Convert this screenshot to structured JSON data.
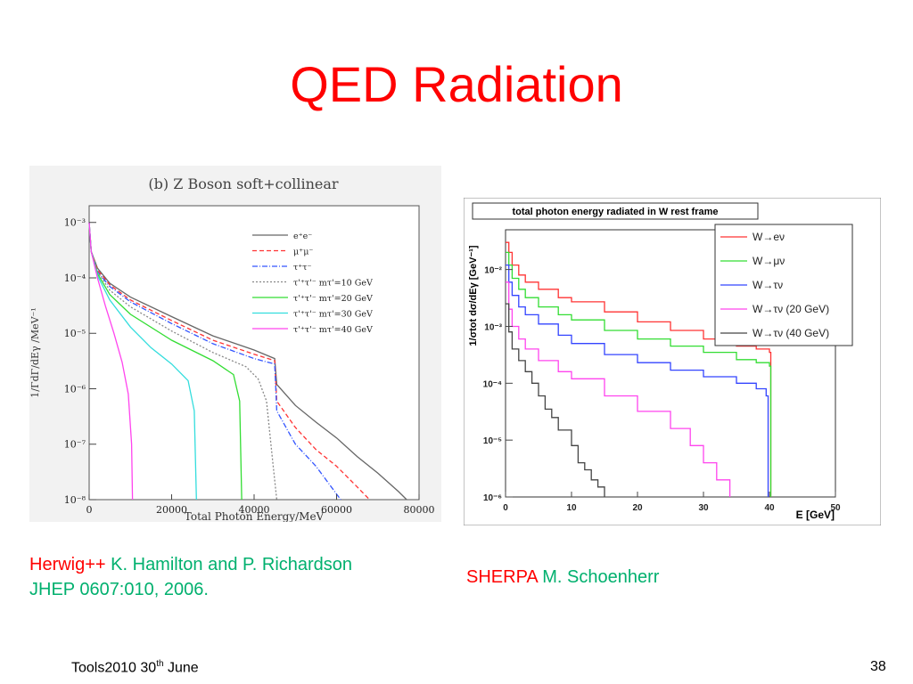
{
  "slide": {
    "title": "QED Radiation",
    "footer_left": "Tools2010 30",
    "footer_sup": "th",
    "footer_left_tail": " June",
    "page_number": "38"
  },
  "credits": {
    "left_tool": "Herwig++",
    "left_authors": " K. Hamilton and P. Richardson",
    "left_ref": "JHEP 0607:010, 2006.",
    "right_tool": "SHERPA",
    "right_author": " M. Schoenherr"
  },
  "colors": {
    "title": "#ff0000",
    "tool": "#ff0000",
    "authors": "#00b06e"
  },
  "chart_data": [
    {
      "type": "line",
      "title": "(b) Z Boson soft+collinear",
      "xlabel": "Total Photon Energy/MeV",
      "ylabel": "1/ΓdΓ/dEγ /MeV⁻¹",
      "xlim": [
        0,
        80000
      ],
      "ylim": [
        1e-08,
        0.002
      ],
      "yscale": "log",
      "x_ticks": [
        "0",
        "20000",
        "40000",
        "60000",
        "80000"
      ],
      "y_ticks": [
        "10⁻³",
        "10⁻⁴",
        "10⁻⁵",
        "10⁻⁶",
        "10⁻⁷",
        "10⁻⁸"
      ],
      "legend_position": "top-right",
      "series": [
        {
          "name": "e⁺e⁻",
          "color": "#666666",
          "dash": "",
          "x": [
            0,
            500,
            2000,
            5000,
            10000,
            20000,
            30000,
            40000,
            45000,
            45500,
            50000,
            55000,
            60000,
            65000,
            70000,
            75000,
            77000
          ],
          "y": [
            0.001,
            0.0003,
            0.00015,
            8e-05,
            4.5e-05,
            2e-05,
            9e-06,
            5e-06,
            3.5e-06,
            1.2e-06,
            5e-07,
            2.5e-07,
            1.3e-07,
            6e-08,
            3e-08,
            1.4e-08,
            1e-08
          ]
        },
        {
          "name": "μ⁺μ⁻",
          "color": "#ff3333",
          "dash": "5,3",
          "x": [
            0,
            500,
            2000,
            5000,
            10000,
            20000,
            30000,
            40000,
            45000,
            45500,
            50000,
            55000,
            60000,
            65000,
            68000
          ],
          "y": [
            0.001,
            0.0003,
            0.00014,
            7.5e-05,
            4e-05,
            1.7e-05,
            7.5e-06,
            4.2e-06,
            3.2e-06,
            6e-07,
            2e-07,
            8e-08,
            4e-08,
            1.7e-08,
            1e-08
          ]
        },
        {
          "name": "τ⁺τ⁻",
          "color": "#3355ff",
          "dash": "6,2,1,2",
          "x": [
            0,
            500,
            2000,
            5000,
            10000,
            20000,
            30000,
            40000,
            45000,
            45500,
            50000,
            55000,
            58000,
            61000
          ],
          "y": [
            0.001,
            0.0003,
            0.00013,
            7e-05,
            3.7e-05,
            1.5e-05,
            6.5e-06,
            3.5e-06,
            2.8e-06,
            4e-07,
            1e-07,
            4e-08,
            2e-08,
            1e-08
          ]
        },
        {
          "name": "τ'⁺τ'⁻ mτ'=10 GeV",
          "color": "#888888",
          "dash": "2,2",
          "x": [
            0,
            500,
            2000,
            5000,
            10000,
            20000,
            30000,
            38000,
            41000,
            43000,
            44500,
            45500
          ],
          "y": [
            0.001,
            0.0003,
            0.00013,
            6e-05,
            3e-05,
            1.1e-05,
            4.5e-06,
            2.5e-06,
            1.5e-06,
            6e-07,
            5e-08,
            1e-08
          ]
        },
        {
          "name": "τ'⁺τ'⁻ mτ'=20 GeV",
          "color": "#33dd33",
          "dash": "",
          "x": [
            0,
            500,
            2000,
            5000,
            10000,
            20000,
            30000,
            35000,
            36500,
            37000
          ],
          "y": [
            0.001,
            0.0003,
            0.00012,
            5e-05,
            2.2e-05,
            7.5e-06,
            3.2e-06,
            1.8e-06,
            6e-07,
            1e-08
          ]
        },
        {
          "name": "τ'⁺τ'⁻ mτ'=30 GeV",
          "color": "#33dddd",
          "dash": "",
          "x": [
            0,
            500,
            2000,
            5000,
            10000,
            15000,
            20000,
            24000,
            25500,
            26000
          ],
          "y": [
            0.001,
            0.0003,
            0.00011,
            4e-05,
            1.3e-05,
            5.5e-06,
            2.8e-06,
            1.4e-06,
            4e-07,
            1e-08
          ]
        },
        {
          "name": "τ'⁺τ'⁻ mτ'=40 GeV",
          "color": "#ff44ee",
          "dash": "",
          "x": [
            0,
            500,
            2000,
            4000,
            6000,
            8000,
            9500,
            10300,
            10500
          ],
          "y": [
            0.001,
            0.0003,
            0.0001,
            3e-05,
            1e-05,
            3e-06,
            8e-07,
            1e-07,
            1e-08
          ]
        }
      ]
    },
    {
      "type": "line",
      "title": "total photon energy radiated in W rest frame",
      "xlabel": "E [GeV]",
      "ylabel": "1/σtot dσ/dEγ [GeV⁻¹]",
      "xlim": [
        0,
        50
      ],
      "ylim": [
        1e-06,
        0.05
      ],
      "yscale": "log",
      "x_ticks": [
        "0",
        "10",
        "20",
        "30",
        "40",
        "50"
      ],
      "y_ticks": [
        "10⁻²",
        "10⁻³",
        "10⁻⁴",
        "10⁻⁵",
        "10⁻⁶"
      ],
      "legend_position": "top-right",
      "series": [
        {
          "name": "W→eν",
          "color": "#ff3333",
          "x": [
            0,
            0.5,
            1,
            2,
            3,
            5,
            8,
            10,
            15,
            20,
            25,
            30,
            35,
            38,
            40,
            40.2
          ],
          "y": [
            0.03,
            0.02,
            0.012,
            0.008,
            0.006,
            0.0045,
            0.0032,
            0.0027,
            0.0018,
            0.0012,
            0.00085,
            0.0006,
            0.00045,
            0.0004,
            0.00035,
            1e-06
          ]
        },
        {
          "name": "W→μν",
          "color": "#33dd33",
          "x": [
            0,
            0.5,
            1,
            2,
            3,
            5,
            8,
            10,
            15,
            20,
            25,
            30,
            35,
            38,
            40,
            40.2
          ],
          "y": [
            0.02,
            0.012,
            0.007,
            0.0045,
            0.0032,
            0.0022,
            0.0016,
            0.0013,
            0.00085,
            0.0006,
            0.00045,
            0.00035,
            0.00026,
            0.00023,
            0.0002,
            1e-06
          ]
        },
        {
          "name": "W→τν",
          "color": "#3344ff",
          "x": [
            0,
            0.5,
            1,
            2,
            3,
            5,
            8,
            10,
            15,
            20,
            25,
            30,
            35,
            38,
            39.5,
            39.8
          ],
          "y": [
            0.012,
            0.006,
            0.0035,
            0.0022,
            0.0016,
            0.0011,
            0.0007,
            0.0005,
            0.00032,
            0.00023,
            0.00017,
            0.00013,
            0.0001,
            8e-05,
            6e-05,
            1e-06
          ]
        },
        {
          "name": "W→τν (20 GeV)",
          "color": "#ff44ee",
          "x": [
            0,
            0.5,
            1,
            2,
            3,
            5,
            8,
            10,
            15,
            20,
            25,
            28,
            30,
            32,
            34
          ],
          "y": [
            0.006,
            0.002,
            0.001,
            0.0006,
            0.0004,
            0.00025,
            0.00016,
            0.00012,
            6e-05,
            3.2e-05,
            1.6e-05,
            8e-06,
            4e-06,
            2e-06,
            1e-06
          ]
        },
        {
          "name": "W→τν (40 GeV)",
          "color": "#444444",
          "x": [
            0,
            0.5,
            1,
            2,
            3,
            4,
            5,
            6,
            7,
            8,
            10,
            11,
            12,
            13,
            14,
            15
          ],
          "y": [
            0.0025,
            0.0008,
            0.0004,
            0.00025,
            0.00016,
            0.0001,
            6e-05,
            3.5e-05,
            2.5e-05,
            1.5e-05,
            8e-06,
            4e-06,
            3e-06,
            2e-06,
            1.5e-06,
            1e-06
          ]
        }
      ]
    }
  ]
}
